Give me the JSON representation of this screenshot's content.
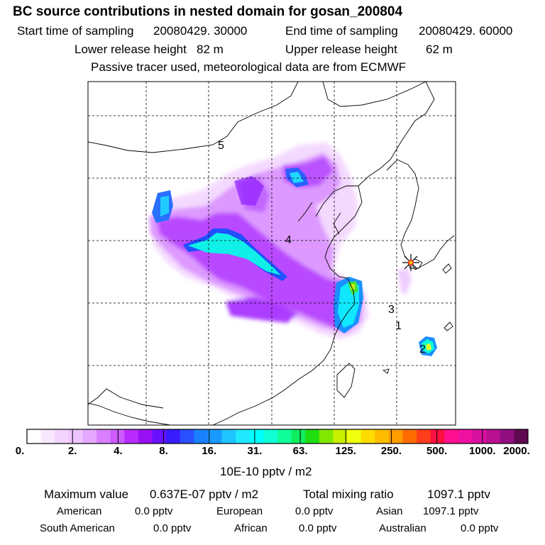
{
  "header": {
    "title": "BC  source contributions in nested domain for gosan_200804",
    "start_label": "Start time of sampling",
    "start_value": "20080429. 30000",
    "end_label": "End time of sampling",
    "end_value": "20080429. 60000",
    "lower_label": "Lower release height",
    "lower_value": "82 m",
    "upper_label": "Upper release height",
    "upper_value": "62 m",
    "note": "Passive tracer used, meteorological data are from ECMWF"
  },
  "map": {
    "region_labels": [
      {
        "id": "5",
        "text": "5"
      },
      {
        "id": "4",
        "text": "4"
      },
      {
        "id": "3",
        "text": "3"
      },
      {
        "id": "1",
        "text": "1"
      },
      {
        "id": "2",
        "text": "2"
      }
    ],
    "receptor_icon": "star-marker-icon"
  },
  "legend": {
    "colors": [
      "#ffffff",
      "#f8e8ff",
      "#f2d4ff",
      "#edc4ff",
      "#e4a8ff",
      "#d880ff",
      "#cc5cff",
      "#b82cff",
      "#9a10f5",
      "#6a10ff",
      "#3a1cff",
      "#2a50ff",
      "#1a80ff",
      "#1a9aff",
      "#20c4ff",
      "#20e8ff",
      "#00ffff",
      "#10ffd4",
      "#10ff9a",
      "#10ee60",
      "#20dd10",
      "#80e800",
      "#c8f000",
      "#f0ff10",
      "#ffdc00",
      "#ffbc00",
      "#ff9c00",
      "#ff6c00",
      "#ff3c1c",
      "#ff1040",
      "#ff1090",
      "#f010a0",
      "#d810a0",
      "#b81090",
      "#901080",
      "#600850"
    ],
    "tick_labels": [
      "0.",
      "2.",
      "4.",
      "8.",
      "16.",
      "31.",
      "63.",
      "125.",
      "250.",
      "500.",
      "1000.",
      "2000."
    ],
    "unit": "10E-10 pptv / m2"
  },
  "stats": {
    "max_label": "Maximum value",
    "max_value": "0.637E-07 pptv / m2",
    "total_label": "Total mixing ratio",
    "total_value": "1097.1 pptv",
    "regions": [
      {
        "name": "American",
        "value": "0.0 pptv"
      },
      {
        "name": "European",
        "value": "0.0 pptv"
      },
      {
        "name": "Asian",
        "value": "1097.1 pptv"
      },
      {
        "name": "South American",
        "value": "0.0 pptv"
      },
      {
        "name": "African",
        "value": "0.0 pptv"
      },
      {
        "name": "Australian",
        "value": "0.0 pptv"
      }
    ]
  }
}
